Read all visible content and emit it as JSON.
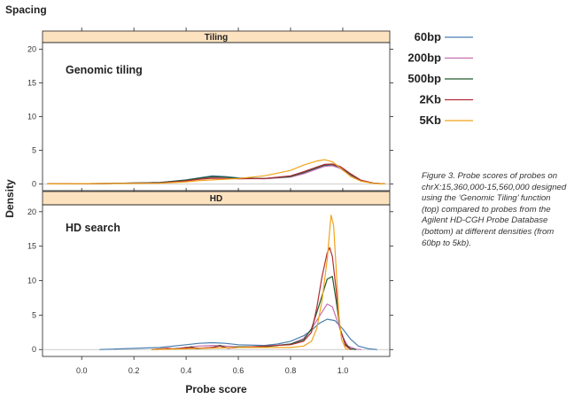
{
  "header": {
    "title": "Spacing"
  },
  "legend": {
    "items": [
      {
        "label": "60bp",
        "color": "#4a7fb0"
      },
      {
        "label": "200bp",
        "color": "#c86fb0"
      },
      {
        "label": "500bp",
        "color": "#1e5a2a"
      },
      {
        "label": "2Kb",
        "color": "#b22d35"
      },
      {
        "label": "5Kb",
        "color": "#f2a31a"
      }
    ]
  },
  "caption": {
    "lines": [
      "Figure 3. Probe scores of probes on",
      "chrX:15,360,000-15,560,000 designed",
      "using the ‘Genomic Tiling’ function",
      "(top) compared to probes from the",
      "Agilent HD-CGH Probe Database",
      "(bottom) at different densities (from",
      "60bp to 5kb)."
    ]
  },
  "chart_data": {
    "type": "line",
    "xlabel": "Probe score",
    "ylabel": "Density",
    "xlim": [
      -0.15,
      1.18
    ],
    "ylim": [
      -1,
      21
    ],
    "xticks": [
      "0.0",
      "0.2",
      "0.4",
      "0.6",
      "0.8",
      "1.0"
    ],
    "yticks": [
      "0",
      "5",
      "10",
      "15",
      "20"
    ],
    "panels": [
      {
        "strip": "Tiling",
        "title": "Genomic tiling",
        "series": [
          {
            "name": "60bp",
            "points": [
              [
                -0.13,
                0
              ],
              [
                0.1,
                0.05
              ],
              [
                0.3,
                0.2
              ],
              [
                0.4,
                0.6
              ],
              [
                0.45,
                0.9
              ],
              [
                0.5,
                1.2
              ],
              [
                0.55,
                1.1
              ],
              [
                0.6,
                0.9
              ],
              [
                0.7,
                0.8
              ],
              [
                0.8,
                1.1
              ],
              [
                0.85,
                1.6
              ],
              [
                0.9,
                2.3
              ],
              [
                0.93,
                2.7
              ],
              [
                0.96,
                2.8
              ],
              [
                0.99,
                2.4
              ],
              [
                1.03,
                1.3
              ],
              [
                1.07,
                0.5
              ],
              [
                1.12,
                0.1
              ],
              [
                1.16,
                0
              ]
            ]
          },
          {
            "name": "200bp",
            "points": [
              [
                -0.13,
                0
              ],
              [
                0.1,
                0.05
              ],
              [
                0.3,
                0.2
              ],
              [
                0.4,
                0.5
              ],
              [
                0.45,
                0.8
              ],
              [
                0.5,
                1.0
              ],
              [
                0.55,
                0.95
              ],
              [
                0.6,
                0.8
              ],
              [
                0.7,
                0.75
              ],
              [
                0.8,
                1.0
              ],
              [
                0.85,
                1.5
              ],
              [
                0.9,
                2.2
              ],
              [
                0.93,
                2.6
              ],
              [
                0.96,
                2.7
              ],
              [
                0.99,
                2.3
              ],
              [
                1.03,
                1.2
              ],
              [
                1.07,
                0.45
              ],
              [
                1.12,
                0.1
              ],
              [
                1.16,
                0
              ]
            ]
          },
          {
            "name": "500bp",
            "points": [
              [
                -0.13,
                0
              ],
              [
                0.1,
                0.05
              ],
              [
                0.3,
                0.2
              ],
              [
                0.4,
                0.55
              ],
              [
                0.45,
                0.85
              ],
              [
                0.5,
                1.1
              ],
              [
                0.55,
                1.0
              ],
              [
                0.6,
                0.85
              ],
              [
                0.7,
                0.8
              ],
              [
                0.8,
                1.1
              ],
              [
                0.85,
                1.7
              ],
              [
                0.9,
                2.4
              ],
              [
                0.93,
                2.8
              ],
              [
                0.96,
                2.9
              ],
              [
                0.99,
                2.5
              ],
              [
                1.03,
                1.4
              ],
              [
                1.07,
                0.5
              ],
              [
                1.12,
                0.1
              ],
              [
                1.16,
                0
              ]
            ]
          },
          {
            "name": "2Kb",
            "points": [
              [
                -0.13,
                0
              ],
              [
                0.1,
                0.05
              ],
              [
                0.3,
                0.15
              ],
              [
                0.4,
                0.45
              ],
              [
                0.45,
                0.7
              ],
              [
                0.5,
                0.85
              ],
              [
                0.55,
                0.8
              ],
              [
                0.6,
                0.75
              ],
              [
                0.7,
                0.8
              ],
              [
                0.8,
                1.2
              ],
              [
                0.85,
                1.8
              ],
              [
                0.9,
                2.5
              ],
              [
                0.93,
                2.9
              ],
              [
                0.96,
                2.95
              ],
              [
                0.99,
                2.6
              ],
              [
                1.03,
                1.5
              ],
              [
                1.07,
                0.55
              ],
              [
                1.12,
                0.1
              ],
              [
                1.16,
                0
              ]
            ]
          },
          {
            "name": "5Kb",
            "points": [
              [
                -0.13,
                0
              ],
              [
                0.1,
                0.05
              ],
              [
                0.3,
                0.1
              ],
              [
                0.4,
                0.3
              ],
              [
                0.45,
                0.5
              ],
              [
                0.5,
                0.6
              ],
              [
                0.55,
                0.7
              ],
              [
                0.6,
                0.8
              ],
              [
                0.7,
                1.2
              ],
              [
                0.8,
                2.0
              ],
              [
                0.85,
                2.8
              ],
              [
                0.9,
                3.4
              ],
              [
                0.93,
                3.6
              ],
              [
                0.96,
                3.3
              ],
              [
                0.99,
                2.4
              ],
              [
                1.03,
                1.1
              ],
              [
                1.07,
                0.4
              ],
              [
                1.12,
                0.05
              ],
              [
                1.16,
                0
              ]
            ]
          }
        ]
      },
      {
        "strip": "HD",
        "title": "HD search",
        "series": [
          {
            "name": "60bp",
            "points": [
              [
                0.07,
                0
              ],
              [
                0.3,
                0.3
              ],
              [
                0.4,
                0.7
              ],
              [
                0.45,
                0.9
              ],
              [
                0.5,
                1.0
              ],
              [
                0.55,
                0.9
              ],
              [
                0.6,
                0.7
              ],
              [
                0.7,
                0.6
              ],
              [
                0.75,
                0.8
              ],
              [
                0.8,
                1.2
              ],
              [
                0.85,
                2.0
              ],
              [
                0.88,
                2.8
              ],
              [
                0.91,
                3.8
              ],
              [
                0.94,
                4.4
              ],
              [
                0.97,
                4.2
              ],
              [
                1.0,
                3.0
              ],
              [
                1.03,
                1.5
              ],
              [
                1.06,
                0.5
              ],
              [
                1.1,
                0.1
              ],
              [
                1.13,
                0
              ]
            ]
          },
          {
            "name": "200bp",
            "points": [
              [
                0.27,
                0
              ],
              [
                0.35,
                0.1
              ],
              [
                0.4,
                0.3
              ],
              [
                0.45,
                0.5
              ],
              [
                0.5,
                0.6
              ],
              [
                0.55,
                0.5
              ],
              [
                0.6,
                0.4
              ],
              [
                0.7,
                0.4
              ],
              [
                0.8,
                0.8
              ],
              [
                0.85,
                1.6
              ],
              [
                0.88,
                3.0
              ],
              [
                0.91,
                4.8
              ],
              [
                0.94,
                6.6
              ],
              [
                0.96,
                6.2
              ],
              [
                0.98,
                4.0
              ],
              [
                1.0,
                1.8
              ],
              [
                1.02,
                0.5
              ],
              [
                1.05,
                0.05
              ],
              [
                1.07,
                0
              ]
            ]
          },
          {
            "name": "500bp",
            "points": [
              [
                0.27,
                0
              ],
              [
                0.35,
                0.1
              ],
              [
                0.4,
                0.2
              ],
              [
                0.42,
                0.4
              ],
              [
                0.44,
                0.1
              ],
              [
                0.5,
                0.3
              ],
              [
                0.53,
                0.6
              ],
              [
                0.56,
                0.2
              ],
              [
                0.6,
                0.4
              ],
              [
                0.7,
                0.4
              ],
              [
                0.8,
                0.8
              ],
              [
                0.85,
                1.4
              ],
              [
                0.88,
                3.0
              ],
              [
                0.91,
                6.5
              ],
              [
                0.94,
                10.2
              ],
              [
                0.96,
                10.6
              ],
              [
                0.975,
                7.0
              ],
              [
                0.99,
                3.0
              ],
              [
                1.01,
                0.8
              ],
              [
                1.03,
                0.1
              ],
              [
                1.05,
                0
              ]
            ]
          },
          {
            "name": "2Kb",
            "points": [
              [
                0.27,
                0
              ],
              [
                0.33,
                0.2
              ],
              [
                0.36,
                0.05
              ],
              [
                0.4,
                0.3
              ],
              [
                0.45,
                0.2
              ],
              [
                0.5,
                0.3
              ],
              [
                0.53,
                0.5
              ],
              [
                0.56,
                0.2
              ],
              [
                0.6,
                0.3
              ],
              [
                0.7,
                0.5
              ],
              [
                0.8,
                0.7
              ],
              [
                0.85,
                1.2
              ],
              [
                0.88,
                2.5
              ],
              [
                0.9,
                6.0
              ],
              [
                0.92,
                10.5
              ],
              [
                0.94,
                14.0
              ],
              [
                0.95,
                14.8
              ],
              [
                0.96,
                13.5
              ],
              [
                0.975,
                8.5
              ],
              [
                0.99,
                3.0
              ],
              [
                1.01,
                0.6
              ],
              [
                1.03,
                0
              ]
            ]
          },
          {
            "name": "5Kb",
            "points": [
              [
                0.27,
                0
              ],
              [
                0.4,
                0.1
              ],
              [
                0.5,
                0.2
              ],
              [
                0.6,
                0.3
              ],
              [
                0.7,
                0.3
              ],
              [
                0.8,
                0.3
              ],
              [
                0.85,
                0.5
              ],
              [
                0.88,
                1.2
              ],
              [
                0.9,
                3.0
              ],
              [
                0.92,
                7.0
              ],
              [
                0.94,
                13.0
              ],
              [
                0.955,
                19.5
              ],
              [
                0.965,
                18.0
              ],
              [
                0.975,
                11.5
              ],
              [
                0.985,
                5.0
              ],
              [
                0.995,
                1.5
              ],
              [
                1.01,
                0.2
              ],
              [
                1.02,
                0
              ]
            ]
          }
        ]
      }
    ]
  }
}
